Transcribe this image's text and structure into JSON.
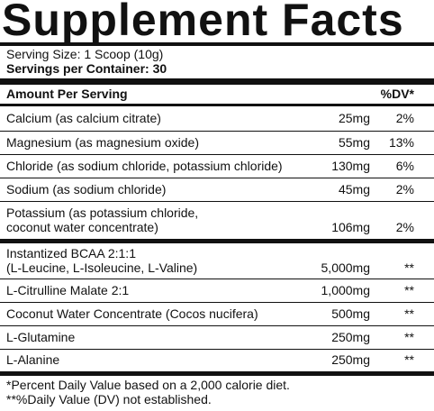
{
  "title": "Supplement Facts",
  "serving_size": "Serving Size: 1 Scoop (10g)",
  "servings_per_container": "Servings per Container: 30",
  "header": {
    "amount": "Amount Per Serving",
    "dv": "%DV*"
  },
  "rows": [
    {
      "name": "Calcium (as calcium citrate)",
      "amount": "25mg",
      "dv": "2%"
    },
    {
      "name": "Magnesium (as magnesium oxide)",
      "amount": "55mg",
      "dv": "13%"
    },
    {
      "name": "Chloride (as sodium chloride, potassium chloride)",
      "amount": "130mg",
      "dv": "6%"
    },
    {
      "name": "Sodium (as sodium chloride)",
      "amount": "45mg",
      "dv": "2%"
    },
    {
      "name": "Potassium (as potassium chloride,",
      "name2": "coconut water concentrate)",
      "amount": "106mg",
      "dv": "2%"
    },
    {
      "name": "Instantized BCAA 2:1:1",
      "name2": "(L-Leucine, L-Isoleucine, L-Valine)",
      "amount": "5,000mg",
      "dv": "**"
    },
    {
      "name": "L-Citrulline Malate 2:1",
      "amount": "1,000mg",
      "dv": "**"
    },
    {
      "name": "Coconut Water Concentrate (Cocos nucifera)",
      "amount": "500mg",
      "dv": "**"
    },
    {
      "name": "L-Glutamine",
      "amount": "250mg",
      "dv": "**"
    },
    {
      "name": "L-Alanine",
      "amount": "250mg",
      "dv": "**"
    }
  ],
  "footnotes": [
    "*Percent Daily Value based on a 2,000 calorie diet.",
    "**%Daily Value (DV) not established."
  ]
}
